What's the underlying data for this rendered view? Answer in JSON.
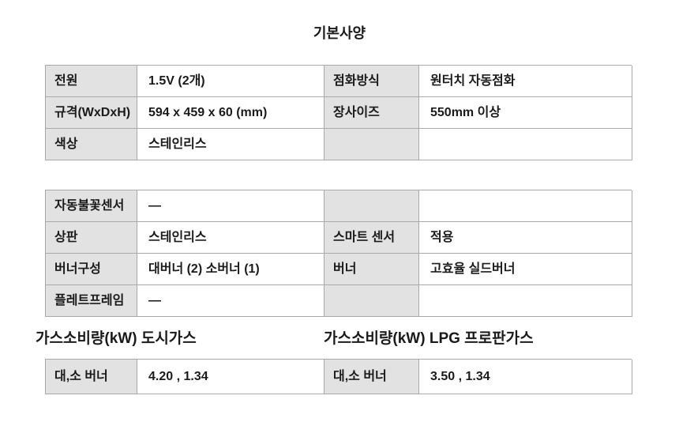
{
  "title": "기본사양",
  "colors": {
    "background": "#ffffff",
    "label_cell_bg": "#e2e2e2",
    "border": "#a9a9a9",
    "text": "#1a1a1a"
  },
  "table1": {
    "rows": [
      {
        "c0": "전원",
        "c1": "1.5V (2개)",
        "c2": "점화방식",
        "c3": "원터치 자동점화"
      },
      {
        "c0": "규격(WxDxH)",
        "c1": "594 x 459 x 60 (mm)",
        "c2": "장사이즈",
        "c3": "550mm 이상"
      },
      {
        "c0": "색상",
        "c1": "스테인리스",
        "c2": "",
        "c3": ""
      }
    ]
  },
  "table2": {
    "rows": [
      {
        "c0": "자동불꽃센서",
        "c1": "—",
        "c2": "",
        "c3": ""
      },
      {
        "c0": "상판",
        "c1": "스테인리스",
        "c2": "스마트 센서",
        "c3": "적용"
      },
      {
        "c0": "버너구성",
        "c1": "대버너 (2) 소버너 (1)",
        "c2": "버너",
        "c3": "고효율 실드버너"
      },
      {
        "c0": "플레트프레임",
        "c1": "—",
        "c2": "",
        "c3": ""
      }
    ]
  },
  "section_headers": {
    "city_gas": "가스소비량(kW) 도시가스",
    "lpg": "가스소비량(kW) LPG 프로판가스"
  },
  "table3": {
    "rows": [
      {
        "c0": "대,소 버너",
        "c1": "4.20 , 1.34",
        "c2": "대,소 버너",
        "c3": "3.50 , 1.34"
      }
    ]
  }
}
